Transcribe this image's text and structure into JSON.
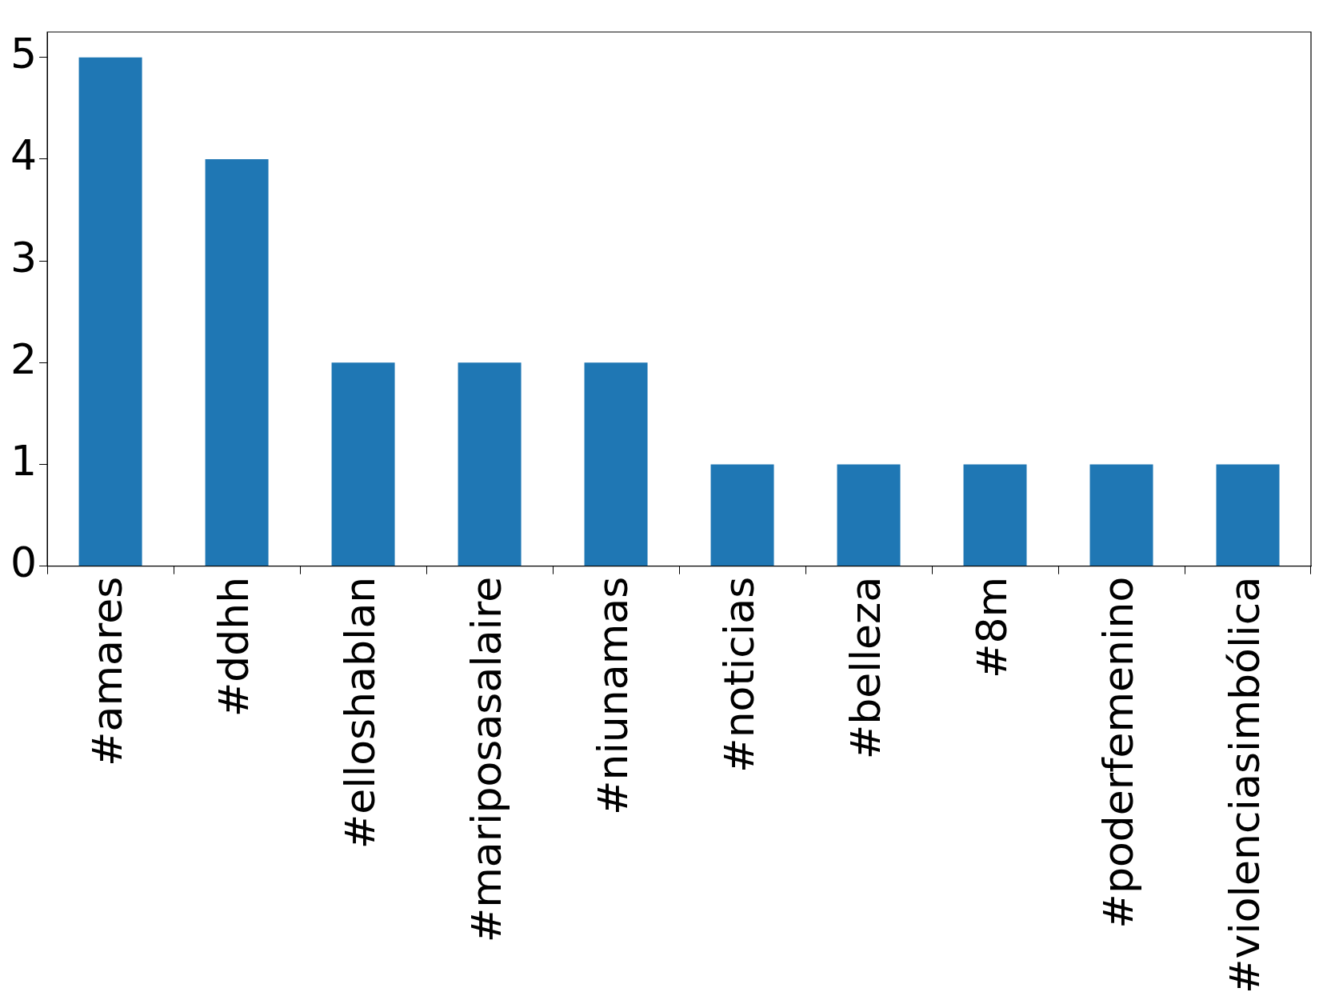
{
  "chart_data": {
    "type": "bar",
    "categories": [
      "#amares",
      "#ddhh",
      "#elloshablan",
      "#mariposasalaire",
      "#niunamas",
      "#noticias",
      "#belleza",
      "#8m",
      "#poderfemenino",
      "#violenciasimbólica"
    ],
    "values": [
      5,
      4,
      2,
      2,
      2,
      1,
      1,
      1,
      1,
      1
    ],
    "color": "#1f77b4",
    "ylim": [
      0,
      5.25
    ],
    "yticks": [
      0,
      1,
      2,
      3,
      4,
      5
    ],
    "grid": false,
    "legend": false
  }
}
